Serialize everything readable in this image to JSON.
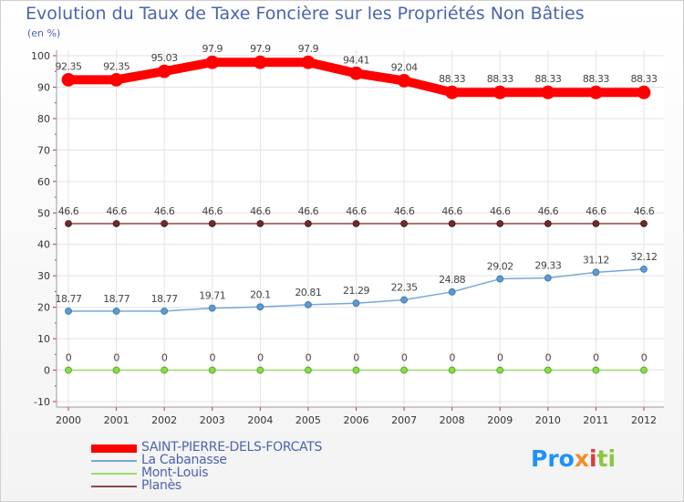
{
  "chart_data": {
    "type": "line",
    "title": "Evolution du Taux de Taxe Foncière sur les Propriétés Non Bâties",
    "ylabel": "(en %)",
    "xlabel": "",
    "ylim": [
      -10,
      100
    ],
    "yticks": [
      -10,
      0,
      10,
      20,
      30,
      40,
      50,
      60,
      70,
      80,
      90,
      100
    ],
    "categories": [
      "2000",
      "2001",
      "2002",
      "2003",
      "2004",
      "2005",
      "2006",
      "2007",
      "2008",
      "2009",
      "2010",
      "2011",
      "2012"
    ],
    "grid": true,
    "legend_position": "bottom-left",
    "series": [
      {
        "name": "SAINT-PIERRE-DELS-FORCATS",
        "color": "#ff0000",
        "values": [
          92.35,
          92.35,
          95.03,
          97.9,
          97.9,
          97.9,
          94.41,
          92.04,
          88.33,
          88.33,
          88.33,
          88.33,
          88.33
        ],
        "labels": [
          "92.35",
          "92.35",
          "95.03",
          "97.9",
          "97.9",
          "97.9",
          "94.41",
          "92.04",
          "88.33",
          "88.33",
          "88.33",
          "88.33",
          "88.33"
        ]
      },
      {
        "name": "La Cabanasse",
        "color": "#7ba7d6",
        "values": [
          18.77,
          18.77,
          18.77,
          19.71,
          20.1,
          20.81,
          21.29,
          22.35,
          24.88,
          29.02,
          29.33,
          31.12,
          32.12
        ],
        "labels": [
          "18.77",
          "18.77",
          "18.77",
          "19.71",
          "20.1",
          "20.81",
          "21.29",
          "22.35",
          "24.88",
          "29.02",
          "29.33",
          "31.12",
          "32.12"
        ]
      },
      {
        "name": "Mont-Louis",
        "color": "#99dd66",
        "values": [
          0,
          0,
          0,
          0,
          0,
          0,
          0,
          0,
          0,
          0,
          0,
          0,
          0
        ],
        "labels": [
          "0",
          "0",
          "0",
          "0",
          "0",
          "0",
          "0",
          "0",
          "0",
          "0",
          "0",
          "0",
          "0"
        ]
      },
      {
        "name": "Planès",
        "color": "#8b4a4a",
        "values": [
          46.6,
          46.6,
          46.6,
          46.6,
          46.6,
          46.6,
          46.6,
          46.6,
          46.6,
          46.6,
          46.6,
          46.6,
          46.6
        ],
        "labels": [
          "46.6",
          "46.6",
          "46.6",
          "46.6",
          "46.6",
          "46.6",
          "46.6",
          "46.6",
          "46.6",
          "46.6",
          "46.6",
          "46.6",
          "46.6"
        ]
      }
    ]
  },
  "logo": {
    "p1": "Pro",
    "p2": "x",
    "p3": "i",
    "p4": "ti"
  }
}
